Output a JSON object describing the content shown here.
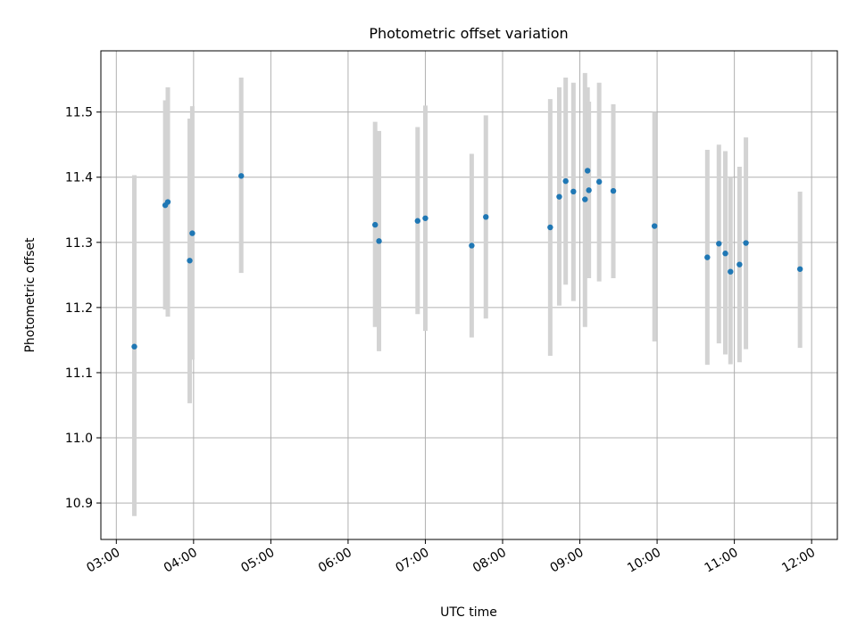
{
  "chart_data": {
    "type": "scatter",
    "title": "Photometric offset variation",
    "xlabel": "UTC time",
    "ylabel": "Photometric offset",
    "xlim": [
      "02:48",
      "12:20"
    ],
    "ylim": [
      10.844,
      11.594
    ],
    "x_ticks": [
      "03:00",
      "04:00",
      "05:00",
      "06:00",
      "07:00",
      "08:00",
      "09:00",
      "10:00",
      "11:00",
      "12:00"
    ],
    "y_ticks": [
      "10.9",
      "11.0",
      "11.1",
      "11.2",
      "11.3",
      "11.4",
      "11.5"
    ],
    "grid": true,
    "colors": {
      "points": "#1f77b4",
      "error_bars": "#d3d3d3",
      "grid": "#b0b0b0"
    },
    "series": [
      {
        "points": [
          {
            "x": "03:14",
            "y": 11.14,
            "ylow": 10.88,
            "yhigh": 11.403
          },
          {
            "x": "03:38",
            "y": 11.357,
            "ylow": 11.197,
            "yhigh": 11.518
          },
          {
            "x": "03:40",
            "y": 11.362,
            "ylow": 11.186,
            "yhigh": 11.538
          },
          {
            "x": "03:57",
            "y": 11.272,
            "ylow": 11.053,
            "yhigh": 11.49
          },
          {
            "x": "03:59",
            "y": 11.314,
            "ylow": 11.12,
            "yhigh": 11.509
          },
          {
            "x": "04:37",
            "y": 11.402,
            "ylow": 11.253,
            "yhigh": 11.553
          },
          {
            "x": "06:21",
            "y": 11.327,
            "ylow": 11.17,
            "yhigh": 11.485
          },
          {
            "x": "06:24",
            "y": 11.302,
            "ylow": 11.133,
            "yhigh": 11.471
          },
          {
            "x": "06:54",
            "y": 11.333,
            "ylow": 11.19,
            "yhigh": 11.477
          },
          {
            "x": "07:00",
            "y": 11.337,
            "ylow": 11.164,
            "yhigh": 11.51
          },
          {
            "x": "07:36",
            "y": 11.295,
            "ylow": 11.154,
            "yhigh": 11.436
          },
          {
            "x": "07:47",
            "y": 11.339,
            "ylow": 11.183,
            "yhigh": 11.495
          },
          {
            "x": "08:37",
            "y": 11.323,
            "ylow": 11.126,
            "yhigh": 11.52
          },
          {
            "x": "08:44",
            "y": 11.37,
            "ylow": 11.203,
            "yhigh": 11.538
          },
          {
            "x": "08:49",
            "y": 11.394,
            "ylow": 11.235,
            "yhigh": 11.553
          },
          {
            "x": "08:55",
            "y": 11.378,
            "ylow": 11.21,
            "yhigh": 11.545
          },
          {
            "x": "09:04",
            "y": 11.366,
            "ylow": 11.17,
            "yhigh": 11.56
          },
          {
            "x": "09:06",
            "y": 11.41,
            "ylow": 11.3,
            "yhigh": 11.538
          },
          {
            "x": "09:07",
            "y": 11.38,
            "ylow": 11.245,
            "yhigh": 11.516
          },
          {
            "x": "09:15",
            "y": 11.393,
            "ylow": 11.24,
            "yhigh": 11.545
          },
          {
            "x": "09:26",
            "y": 11.379,
            "ylow": 11.245,
            "yhigh": 11.512
          },
          {
            "x": "09:58",
            "y": 11.325,
            "ylow": 11.148,
            "yhigh": 11.5
          },
          {
            "x": "10:39",
            "y": 11.277,
            "ylow": 11.112,
            "yhigh": 11.442
          },
          {
            "x": "10:48",
            "y": 11.298,
            "ylow": 11.145,
            "yhigh": 11.45
          },
          {
            "x": "10:53",
            "y": 11.283,
            "ylow": 11.128,
            "yhigh": 11.44
          },
          {
            "x": "10:57",
            "y": 11.255,
            "ylow": 11.113,
            "yhigh": 11.4
          },
          {
            "x": "11:04",
            "y": 11.266,
            "ylow": 11.116,
            "yhigh": 11.416
          },
          {
            "x": "11:09",
            "y": 11.299,
            "ylow": 11.136,
            "yhigh": 11.461
          },
          {
            "x": "11:51",
            "y": 11.259,
            "ylow": 11.138,
            "yhigh": 11.378
          }
        ]
      }
    ]
  }
}
